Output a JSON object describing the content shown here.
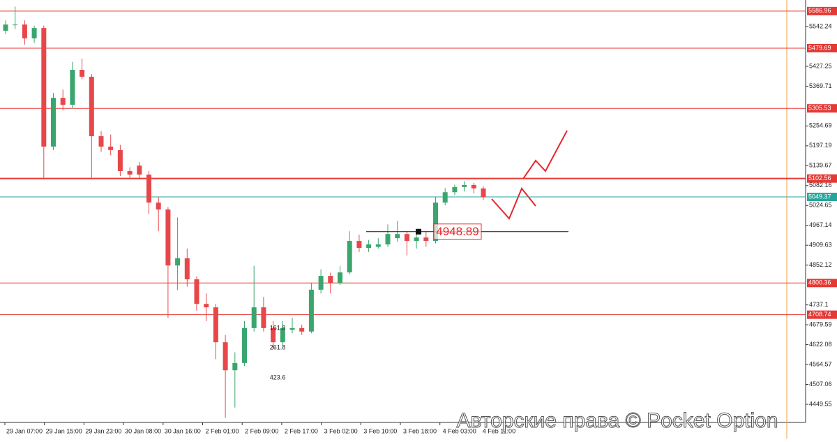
{
  "chart_data": {
    "type": "candlestick",
    "up_color": "#3aa66e",
    "down_color": "#e8474a",
    "ylim": [
      4397,
      5619
    ],
    "yticks": [
      5542.24,
      5427.25,
      5369.71,
      5254.69,
      5197.19,
      5139.67,
      5082.16,
      5024.65,
      4967.14,
      4909.63,
      4852.12,
      4737.1,
      4679.59,
      4622.08,
      4564.57,
      4507.06,
      4449.55
    ],
    "xtick_labels": [
      "29 Jan 07:00",
      "29 Jan 15:00",
      "29 Jan 23:00",
      "30 Jan 08:00",
      "30 Jan 16:00",
      "2 Feb 01:00",
      "2 Feb 09:00",
      "2 Feb 17:00",
      "3 Feb 02:00",
      "3 Feb 10:00",
      "3 Feb 18:00",
      "4 Feb 03:00",
      "4 Feb 11:00"
    ],
    "levels": [
      {
        "value": 5586.96,
        "color": "#e53935"
      },
      {
        "value": 5479.69,
        "color": "#e53935"
      },
      {
        "value": 5305.53,
        "color": "#e53935"
      },
      {
        "value": 5102.56,
        "color": "#e53935"
      },
      {
        "value": 5049.37,
        "color": "#26a69a"
      },
      {
        "value": 4800.36,
        "color": "#e53935"
      },
      {
        "value": 4708.74,
        "color": "#e53935"
      }
    ],
    "annotation": {
      "value": 4948.89
    },
    "fib_labels": [
      "161.8",
      "261.8",
      "423.6"
    ],
    "watermark": "Авторские права © Pocket Option",
    "open": [
      5530,
      5548,
      5548,
      5508,
      5538,
      5195,
      5336,
      5316,
      5417,
      5397,
      5225,
      5195,
      5185,
      5124,
      5140,
      5114,
      5033,
      5013,
      4851,
      4872,
      4811,
      4740,
      4730,
      4629,
      4548,
      4569,
      4670,
      4730,
      4670,
      4629,
      4665,
      4670,
      4660,
      4781,
      4821,
      4801,
      4831,
      4922,
      4902,
      4905,
      4912,
      4930,
      4942,
      4922,
      4932,
      4922,
      5033,
      5063,
      5078,
      5084,
      5074
    ],
    "high": [
      5560,
      5600,
      5560,
      5545,
      5545,
      5350,
      5360,
      5440,
      5450,
      5405,
      5240,
      5230,
      5200,
      5135,
      5150,
      5125,
      5050,
      5020,
      4990,
      4900,
      4820,
      4770,
      4740,
      4650,
      4600,
      4690,
      4850,
      4760,
      4690,
      4690,
      4700,
      4680,
      4800,
      4840,
      4830,
      4850,
      4950,
      4940,
      4925,
      4930,
      4970,
      4980,
      4950,
      4950,
      4950,
      5050,
      5075,
      5085,
      5095,
      5090,
      5080
    ],
    "low": [
      5520,
      5535,
      5490,
      5495,
      5100,
      5185,
      5300,
      5305,
      5390,
      5100,
      5180,
      5170,
      5110,
      5100,
      5100,
      5000,
      4950,
      4700,
      4780,
      4790,
      4720,
      4690,
      4580,
      4410,
      4440,
      4560,
      4660,
      4660,
      4610,
      4620,
      4655,
      4650,
      4655,
      4770,
      4770,
      4795,
      4825,
      4890,
      4890,
      4900,
      4905,
      4920,
      4880,
      4900,
      4905,
      4915,
      5025,
      5055,
      5065,
      5060,
      5040
    ],
    "close": [
      5548,
      5548,
      5508,
      5538,
      5195,
      5336,
      5316,
      5417,
      5397,
      5225,
      5195,
      5185,
      5124,
      5114,
      5114,
      5033,
      5013,
      4851,
      4872,
      4811,
      4740,
      4730,
      4629,
      4548,
      4569,
      4670,
      4730,
      4670,
      4629,
      4670,
      4670,
      4660,
      4781,
      4821,
      4801,
      4831,
      4922,
      4902,
      4912,
      4912,
      4942,
      4942,
      4922,
      4932,
      4922,
      5033,
      5063,
      5078,
      5084,
      5074,
      5049
    ]
  }
}
